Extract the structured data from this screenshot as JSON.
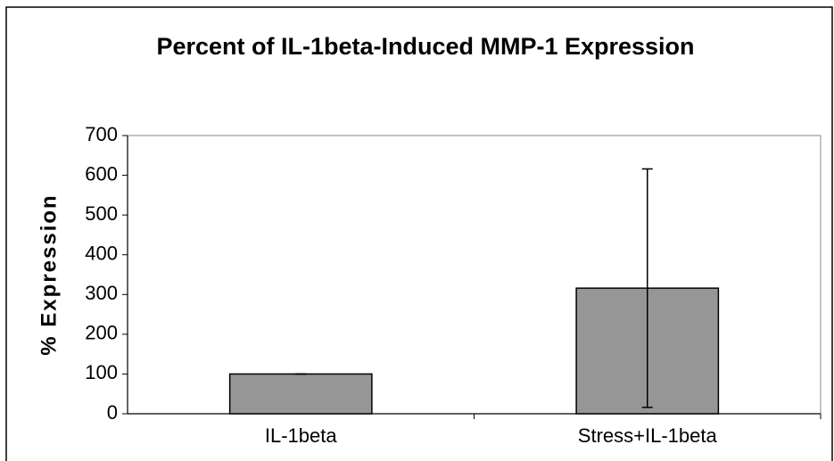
{
  "chart_data": {
    "type": "bar",
    "title": "Percent of IL-1beta-Induced MMP-1 Expression",
    "y_label": "% Expression",
    "categories": [
      "IL-1beta",
      "Stress+IL-1beta"
    ],
    "values": [
      100,
      316
    ],
    "errors": [
      0,
      300
    ],
    "color": "#969696",
    "ylim": [
      0,
      700
    ],
    "yticks": [
      0,
      100,
      200,
      300,
      400,
      500,
      600,
      700
    ],
    "grid": false
  }
}
